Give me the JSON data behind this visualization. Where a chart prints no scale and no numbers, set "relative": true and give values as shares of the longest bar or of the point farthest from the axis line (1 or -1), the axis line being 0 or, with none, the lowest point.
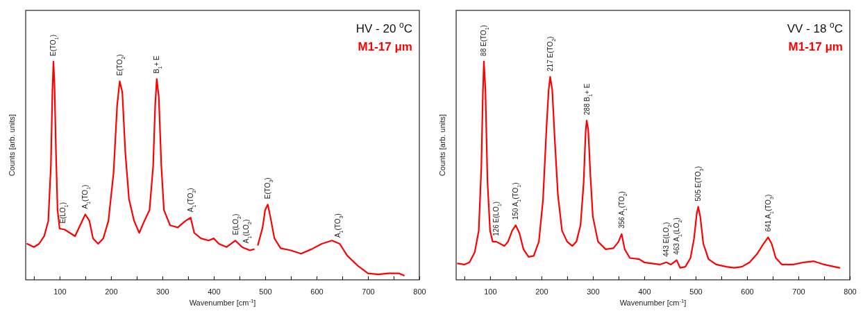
{
  "chart_data": [
    {
      "type": "line",
      "title": "HV - 20 $^{o}$C",
      "xlabel": "Wavenumber [cm$^{-1}$]",
      "ylabel": "Counts [arb. units]",
      "relative": true,
      "legend": "top right",
      "xlim": [
        34,
        800
      ],
      "xticks": [
        {
          "value": 50,
          "label": null
        },
        100,
        {
          "value": 150,
          "label": null
        },
        200,
        {
          "value": 250,
          "label": null
        },
        300,
        {
          "value": 350,
          "label": null
        },
        400,
        {
          "value": 450,
          "label": null
        },
        500,
        {
          "value": 550,
          "label": null
        },
        600,
        {
          "value": 650,
          "label": null
        },
        700,
        {
          "value": 750,
          "label": null
        },
        800
      ],
      "x": [
        37,
        50,
        60,
        70,
        78,
        83,
        86,
        88,
        90,
        93,
        96,
        100,
        110,
        120,
        130,
        140,
        150,
        158,
        165,
        175,
        185,
        195,
        205,
        212,
        217,
        222,
        228,
        235,
        245,
        255,
        265,
        275,
        282,
        286,
        289,
        293,
        298,
        303,
        315,
        330,
        345,
        355,
        362,
        375,
        390,
        400,
        410,
        425,
        442,
        455,
        470,
        478,
        481,
        486,
        495,
        500,
        505,
        510,
        518,
        530,
        550,
        570,
        590,
        610,
        630,
        645,
        660,
        680,
        700,
        720,
        740,
        760,
        770
      ],
      "series": [
        {
          "name": "M1-17 μm",
          "color": "#ff0000",
          "values": [
            0.165,
            0.15,
            0.165,
            0.2,
            0.27,
            0.52,
            0.86,
            1.0,
            0.9,
            0.58,
            0.32,
            0.235,
            0.23,
            0.215,
            0.2,
            0.25,
            0.3,
            0.27,
            0.19,
            0.165,
            0.19,
            0.27,
            0.49,
            0.8,
            0.91,
            0.86,
            0.58,
            0.37,
            0.27,
            0.215,
            0.27,
            0.32,
            0.52,
            0.8,
            0.92,
            0.84,
            0.52,
            0.32,
            0.25,
            0.24,
            0.27,
            0.285,
            0.215,
            0.19,
            0.18,
            0.19,
            0.165,
            0.15,
            0.18,
            0.15,
            0.135,
            0.14,
            null,
            0.16,
            0.24,
            0.32,
            0.345,
            0.29,
            0.19,
            0.145,
            0.135,
            0.12,
            0.14,
            0.165,
            0.18,
            0.165,
            0.11,
            0.065,
            0.03,
            0.025,
            0.03,
            0.03,
            0.02
          ]
        }
      ],
      "annotations": [
        {
          "text": "E(TO$_{1}$)",
          "x": 88,
          "y": 1.0
        },
        {
          "text": "E(LO$_{1}$)",
          "x": 106,
          "y": 0.233
        },
        {
          "text": "A$_{1}$(TO$_{1}$)",
          "x": 150,
          "y": 0.3
        },
        {
          "text": "E(TO$_{2}$)",
          "x": 217,
          "y": 0.91
        },
        {
          "text": "B$_{1}$+ E",
          "x": 289,
          "y": 0.92
        },
        {
          "text": "A$_{1}$(TO$_{2}$)",
          "x": 355,
          "y": 0.285
        },
        {
          "text": "E(LO$_{2}$)",
          "x": 442,
          "y": 0.18
        },
        {
          "text": "A$_{1}$(LO$_{2}$)",
          "x": 463,
          "y": 0.142
        },
        {
          "text": "E(TO$_{3}$)",
          "x": 505,
          "y": 0.345
        },
        {
          "text": "A$_{1}$(TO$_{3}$)",
          "x": 641,
          "y": 0.168
        }
      ]
    },
    {
      "type": "line",
      "title": "VV - 18 $^{o}$C",
      "xlabel": "Wavenumber [cm$^{-1}$]",
      "ylabel": "Counts [arb. units]",
      "relative": true,
      "legend": "top right",
      "xlim": [
        34,
        800
      ],
      "xticks": [
        {
          "value": 50,
          "label": null
        },
        100,
        {
          "value": 150,
          "label": null
        },
        200,
        {
          "value": 250,
          "label": null
        },
        300,
        {
          "value": 350,
          "label": null
        },
        400,
        {
          "value": 450,
          "label": null
        },
        500,
        {
          "value": 550,
          "label": null
        },
        600,
        {
          "value": 650,
          "label": null
        },
        700,
        {
          "value": 750,
          "label": null
        },
        800
      ],
      "x": [
        37,
        50,
        60,
        70,
        78,
        83,
        86,
        88,
        91,
        95,
        100,
        105,
        112,
        120,
        128,
        135,
        143,
        150,
        157,
        165,
        175,
        185,
        195,
        203,
        210,
        214,
        217,
        221,
        226,
        232,
        240,
        250,
        260,
        268,
        276,
        282,
        286,
        288,
        291,
        295,
        300,
        310,
        325,
        340,
        350,
        356,
        362,
        372,
        390,
        400,
        415,
        430,
        443,
        452,
        463,
        470,
        480,
        490,
        497,
        502,
        505,
        509,
        515,
        525,
        540,
        560,
        575,
        590,
        605,
        620,
        632,
        641,
        648,
        656,
        668,
        690,
        710,
        730,
        750,
        770,
        780
      ],
      "series": [
        {
          "name": "M1-17 μm",
          "color": "#ff0000",
          "values": [
            0.075,
            0.07,
            0.08,
            0.125,
            0.225,
            0.515,
            0.855,
            1.0,
            0.87,
            0.45,
            0.225,
            0.175,
            0.175,
            0.165,
            0.155,
            0.175,
            0.225,
            0.25,
            0.215,
            0.14,
            0.105,
            0.11,
            0.175,
            0.365,
            0.705,
            0.87,
            0.93,
            0.87,
            0.64,
            0.39,
            0.225,
            0.175,
            0.155,
            0.175,
            0.25,
            0.44,
            0.68,
            0.73,
            0.69,
            0.49,
            0.29,
            0.175,
            0.14,
            0.145,
            0.175,
            0.21,
            0.14,
            0.1,
            0.095,
            0.08,
            0.075,
            0.07,
            0.08,
            0.07,
            0.09,
            0.055,
            0.06,
            0.1,
            0.19,
            0.3,
            0.335,
            0.29,
            0.165,
            0.095,
            0.07,
            0.06,
            0.055,
            0.06,
            0.08,
            0.12,
            0.165,
            0.195,
            0.165,
            0.1,
            0.07,
            0.07,
            0.08,
            0.085,
            0.07,
            0.06,
            0.055
          ]
        }
      ],
      "annotations": [
        {
          "text": "88 E(TO$_{1}$)",
          "x": 88,
          "y": 1.0
        },
        {
          "text": "126 E(LO$_{1}$)",
          "x": 112,
          "y": 0.175
        },
        {
          "text": "150 A$_{1}$(TO$_{1}$)",
          "x": 150,
          "y": 0.25
        },
        {
          "text": "217 E(TO$_{2}$)",
          "x": 217,
          "y": 0.93
        },
        {
          "text": "288 B$_{1}$+ E",
          "x": 288,
          "y": 0.73
        },
        {
          "text": "356 A$_{1}$(TO$_{2}$)",
          "x": 356,
          "y": 0.21
        },
        {
          "text": "443 E(LO$_{2}$)",
          "x": 443,
          "y": 0.08
        },
        {
          "text": "463 A$_{1}$(LO$_{2}$)",
          "x": 463,
          "y": 0.09
        },
        {
          "text": "505 E(TO$_{3}$)",
          "x": 505,
          "y": 0.335
        },
        {
          "text": "641 A$_{1}$(TO$_{3}$)",
          "x": 641,
          "y": 0.195
        }
      ]
    }
  ]
}
